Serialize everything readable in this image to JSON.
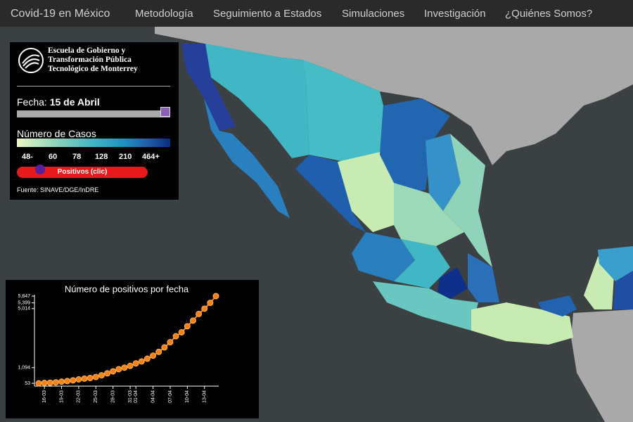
{
  "nav": {
    "brand": "Covid-19 en México",
    "items": [
      "Metodología",
      "Seguimiento a Estados",
      "Simulaciones",
      "Investigación",
      "¿Quiénes Somos?"
    ]
  },
  "panel": {
    "school": [
      "Escuela de Gobierno y",
      "Transformación Pública",
      "Tecnológico de Monterrey"
    ],
    "date_label": "Fecha:",
    "date_value": "15 de Abril",
    "legend_title": "Número de Casos",
    "legend_labels": [
      "48-",
      "60",
      "78",
      "128",
      "210",
      "464+"
    ],
    "button": "Positivos (clic)",
    "source": "Fuente: SINAVE/DGE/InDRE"
  },
  "chart_data": {
    "type": "line",
    "title": "Número de positivos por fecha",
    "categories": [
      null,
      "16-03",
      null,
      null,
      "19-03",
      null,
      null,
      "22-03",
      null,
      null,
      "25-03",
      null,
      null,
      "28-03",
      null,
      null,
      "31-03",
      "01-04",
      null,
      null,
      "04-04",
      null,
      null,
      "07-04",
      null,
      null,
      "10-04",
      null,
      null,
      "13-04",
      null,
      null
    ],
    "values": [
      53,
      82,
      93,
      118,
      164,
      203,
      251,
      316,
      367,
      405,
      475,
      585,
      717,
      848,
      993,
      1094,
      1215,
      1378,
      1510,
      1688,
      1890,
      2143,
      2439,
      2785,
      3181,
      3441,
      3844,
      4219,
      4661,
      5014,
      5399,
      5847
    ],
    "color": "#f5821f",
    "ylim": [
      53,
      5847
    ],
    "yticks": [
      53,
      {
        "value": 1094,
        "label": "1,094"
      },
      {
        "value": 5014,
        "label": "5,014"
      },
      {
        "value": 5399,
        "label": "5,399"
      },
      {
        "value": 5847,
        "label": "5,847"
      }
    ]
  }
}
